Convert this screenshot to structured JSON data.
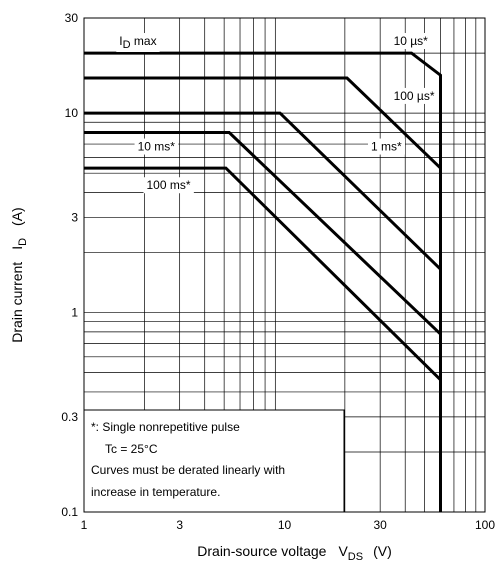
{
  "chart_data": {
    "type": "line",
    "scale": "log-log",
    "xlim": [
      1,
      100
    ],
    "ylim": [
      0.1,
      30
    ],
    "x_ticks": [
      {
        "value": 1,
        "label": "1"
      },
      {
        "value": 3,
        "label": "3"
      },
      {
        "value": 10,
        "label": "10"
      },
      {
        "value": 30,
        "label": "30"
      },
      {
        "value": 100,
        "label": "100"
      }
    ],
    "y_ticks": [
      {
        "value": 0.1,
        "label": "0.1"
      },
      {
        "value": 0.3,
        "label": "0.3"
      },
      {
        "value": 1,
        "label": "1"
      },
      {
        "value": 3,
        "label": "3"
      },
      {
        "value": 10,
        "label": "10"
      },
      {
        "value": 30,
        "label": "30"
      }
    ],
    "xlabel": {
      "main": "Drain-source voltage",
      "sym": "V",
      "sub": "DS",
      "unit": "(V)"
    },
    "ylabel": {
      "main": "Drain current",
      "sym": "I",
      "sub": "D",
      "unit": "(A)"
    },
    "grid": true,
    "series": [
      {
        "name": "10 µs*",
        "points": [
          [
            1,
            20
          ],
          [
            43,
            20
          ],
          [
            60,
            15.5
          ],
          [
            60,
            0.1
          ]
        ]
      },
      {
        "name": "100 µs*",
        "points": [
          [
            1,
            15
          ],
          [
            20.5,
            15
          ],
          [
            60,
            5.3
          ]
        ]
      },
      {
        "name": "1 ms*",
        "points": [
          [
            1,
            10
          ],
          [
            9.5,
            10
          ],
          [
            60,
            1.65
          ]
        ]
      },
      {
        "name": "10 ms*",
        "points": [
          [
            1,
            8
          ],
          [
            5.3,
            8
          ],
          [
            60,
            0.78
          ]
        ]
      },
      {
        "name": "100 ms*",
        "points": [
          [
            1,
            5.3
          ],
          [
            5.1,
            5.3
          ],
          [
            60,
            0.46
          ]
        ]
      }
    ],
    "labels": [
      {
        "key": "id_max",
        "text_main": "I",
        "text_sub": "D",
        "text_rest": " max",
        "x": 1.5,
        "y": 23
      },
      {
        "key": "us10",
        "text": "10 µs*",
        "x": 35,
        "y": 23
      },
      {
        "key": "us100",
        "text": "100 µs*",
        "x": 35,
        "y": 12.2
      },
      {
        "key": "ms1",
        "text": "1 ms*",
        "x": 27,
        "y": 6.8
      },
      {
        "key": "ms10",
        "text": "10 ms*",
        "x": 1.85,
        "y": 6.8
      },
      {
        "key": "ms100",
        "text": "100 ms*",
        "x": 2.05,
        "y": 4.35
      }
    ],
    "note": {
      "lines": [
        "*: Single nonrepetitive pulse",
        "Tc = 25°C",
        "Curves must be derated linearly with",
        "increase in temperature."
      ]
    }
  }
}
